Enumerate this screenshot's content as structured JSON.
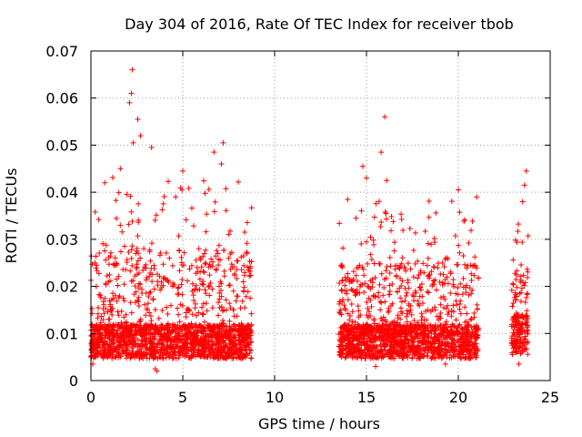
{
  "chart_data": {
    "type": "scatter",
    "title": "Day 304 of 2016, Rate Of TEC Index for receiver tbob",
    "xlabel": "GPS time / hours",
    "ylabel": "ROTI / TECUs",
    "xlim": [
      0,
      25
    ],
    "ylim": [
      0,
      0.07
    ],
    "xticks": [
      "0",
      "5",
      "10",
      "15",
      "20",
      "25"
    ],
    "yticks": [
      "0",
      "0.01",
      "0.02",
      "0.03",
      "0.04",
      "0.05",
      "0.06",
      "0.07"
    ],
    "grid": true,
    "marker": "+",
    "color": "#ff0000",
    "series": [
      {
        "name": "ROTI",
        "segments": [
          {
            "x_start": 0.0,
            "x_end": 8.75,
            "baseline": 0.0085,
            "spread": 0.035
          },
          {
            "x_start": 13.5,
            "x_end": 21.1,
            "baseline": 0.0085,
            "spread": 0.03
          },
          {
            "x_start": 22.9,
            "x_end": 23.8,
            "baseline": 0.01,
            "spread": 0.025
          }
        ],
        "highlights": [
          {
            "x": 2.25,
            "y": 0.066
          },
          {
            "x": 2.2,
            "y": 0.061
          },
          {
            "x": 2.1,
            "y": 0.059
          },
          {
            "x": 2.55,
            "y": 0.0555
          },
          {
            "x": 2.7,
            "y": 0.052
          },
          {
            "x": 2.3,
            "y": 0.0505
          },
          {
            "x": 3.3,
            "y": 0.0495
          },
          {
            "x": 7.2,
            "y": 0.0505
          },
          {
            "x": 6.7,
            "y": 0.0485
          },
          {
            "x": 7.1,
            "y": 0.046
          },
          {
            "x": 1.6,
            "y": 0.045
          },
          {
            "x": 5.0,
            "y": 0.0445
          },
          {
            "x": 16.0,
            "y": 0.056
          },
          {
            "x": 15.8,
            "y": 0.0485
          },
          {
            "x": 14.8,
            "y": 0.0455
          },
          {
            "x": 15.0,
            "y": 0.043
          },
          {
            "x": 16.1,
            "y": 0.0425
          },
          {
            "x": 23.7,
            "y": 0.0445
          },
          {
            "x": 23.6,
            "y": 0.0415
          },
          {
            "x": 23.5,
            "y": 0.038
          },
          {
            "x": 20.0,
            "y": 0.0405
          },
          {
            "x": 21.0,
            "y": 0.039
          },
          {
            "x": 0.1,
            "y": 0.0035
          },
          {
            "x": 3.5,
            "y": 0.0025
          },
          {
            "x": 3.6,
            "y": 0.002
          },
          {
            "x": 15.5,
            "y": 0.003
          },
          {
            "x": 19.3,
            "y": 0.0035
          },
          {
            "x": 23.3,
            "y": 0.0035
          }
        ]
      }
    ]
  }
}
